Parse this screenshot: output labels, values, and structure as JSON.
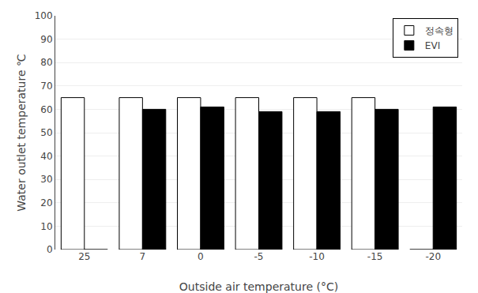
{
  "chart_data": {
    "type": "bar",
    "categories": [
      "25",
      "7",
      "0",
      "-5",
      "-10",
      "-15",
      "-20"
    ],
    "series": [
      {
        "name": "정속형",
        "color": "#ffffff",
        "values": [
          65,
          65,
          65,
          65,
          65,
          65,
          0
        ]
      },
      {
        "name": "EVI",
        "color": "#000000",
        "values": [
          0,
          60,
          61,
          59,
          59,
          60,
          61
        ]
      }
    ],
    "xlabel": "Outside air temperature (°C)",
    "ylabel": "Water outlet temperature ℃",
    "ylim": [
      0,
      100
    ],
    "yticks": [
      0,
      10,
      20,
      30,
      40,
      50,
      60,
      70,
      80,
      90,
      100
    ],
    "grid": true,
    "legend": "upper right"
  }
}
